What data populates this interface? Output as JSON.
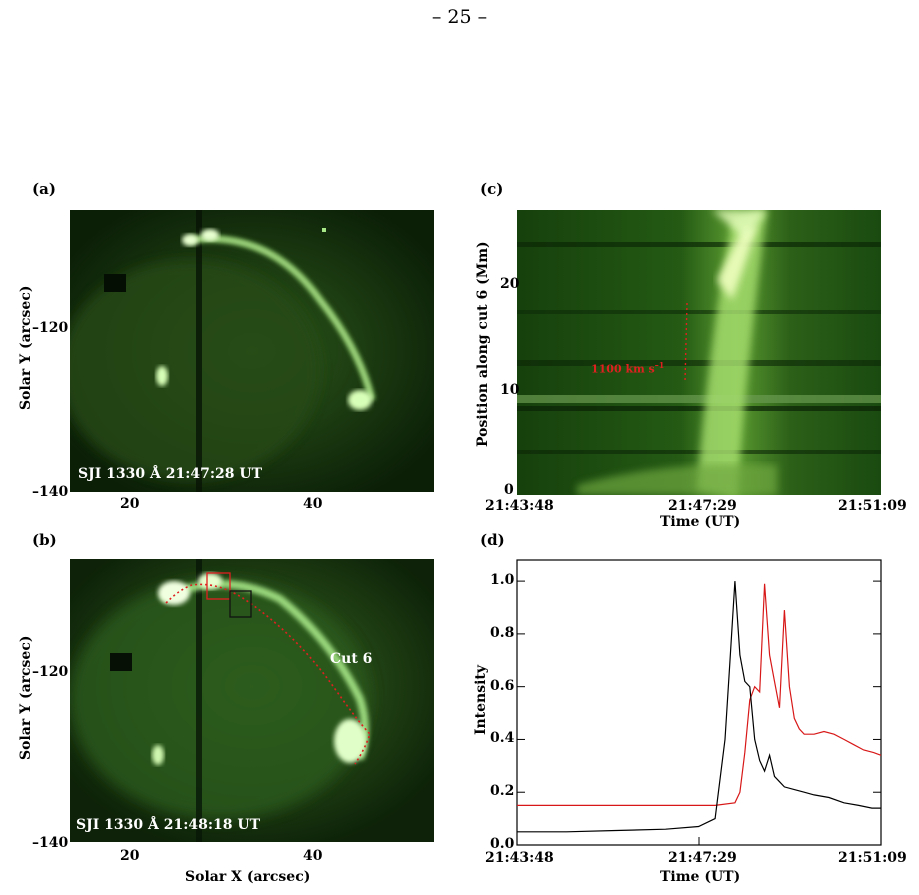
{
  "page_number": "– 25 –",
  "panels": {
    "a": {
      "label": "(a)",
      "caption": "SJI 1330 Å  21:47:28 UT",
      "yaxis_title": "Solar Y (arcsec)",
      "yticks": [
        "–120",
        "–140"
      ],
      "xticks": [
        "20",
        "40"
      ]
    },
    "b": {
      "label": "(b)",
      "caption": "SJI 1330 Å  21:48:18 UT",
      "cut_label": "Cut 6",
      "yaxis_title": "Solar Y (arcsec)",
      "xaxis_title": "Solar X (arcsec)",
      "yticks": [
        "–120",
        "–140"
      ],
      "xticks": [
        "20",
        "40"
      ]
    },
    "c": {
      "label": "(c)",
      "yaxis_title": "Position along cut 6 (Mm)",
      "xaxis_title": "Time (UT)",
      "yticks": [
        "20",
        "10",
        "0"
      ],
      "xticks": [
        "21:43:48",
        "21:47:29",
        "21:51:09"
      ],
      "velocity_label": "1100 km s",
      "velocity_exp": "–1"
    },
    "d": {
      "label": "(d)",
      "yaxis_title": "Intensity",
      "xaxis_title": "Time (UT)",
      "yticks": [
        "1.0",
        "0.8",
        "0.6",
        "0.4",
        "0.2",
        "0.0"
      ],
      "xticks": [
        "21:43:48",
        "21:47:29",
        "21:51:09"
      ]
    }
  },
  "chart_data": {
    "type": "line",
    "title": "",
    "xlabel": "Time (UT)",
    "ylabel": "Intensity",
    "x_range": [
      "21:43:48",
      "21:51:09"
    ],
    "ylim": [
      0.0,
      1.08
    ],
    "series": [
      {
        "color": "#d81818",
        "x_seconds": [
          0,
          60,
          120,
          180,
          240,
          264,
          270,
          276,
          282,
          288,
          294,
          300,
          306,
          312,
          318,
          324,
          330,
          336,
          342,
          348,
          360,
          372,
          384,
          396,
          408,
          420,
          432,
          441
        ],
        "values": [
          0.15,
          0.15,
          0.15,
          0.15,
          0.15,
          0.16,
          0.2,
          0.35,
          0.55,
          0.6,
          0.58,
          0.99,
          0.72,
          0.62,
          0.52,
          0.89,
          0.6,
          0.48,
          0.44,
          0.42,
          0.42,
          0.43,
          0.42,
          0.4,
          0.38,
          0.36,
          0.35,
          0.34
        ]
      },
      {
        "color": "#000000",
        "x_seconds": [
          0,
          60,
          120,
          180,
          220,
          240,
          252,
          258,
          264,
          270,
          276,
          282,
          288,
          294,
          300,
          306,
          312,
          318,
          324,
          336,
          348,
          360,
          378,
          396,
          414,
          430,
          441
        ],
        "values": [
          0.05,
          0.05,
          0.055,
          0.06,
          0.07,
          0.1,
          0.4,
          0.7,
          1.0,
          0.72,
          0.62,
          0.6,
          0.4,
          0.32,
          0.28,
          0.34,
          0.26,
          0.24,
          0.22,
          0.21,
          0.2,
          0.19,
          0.18,
          0.16,
          0.15,
          0.14,
          0.14
        ]
      }
    ]
  }
}
